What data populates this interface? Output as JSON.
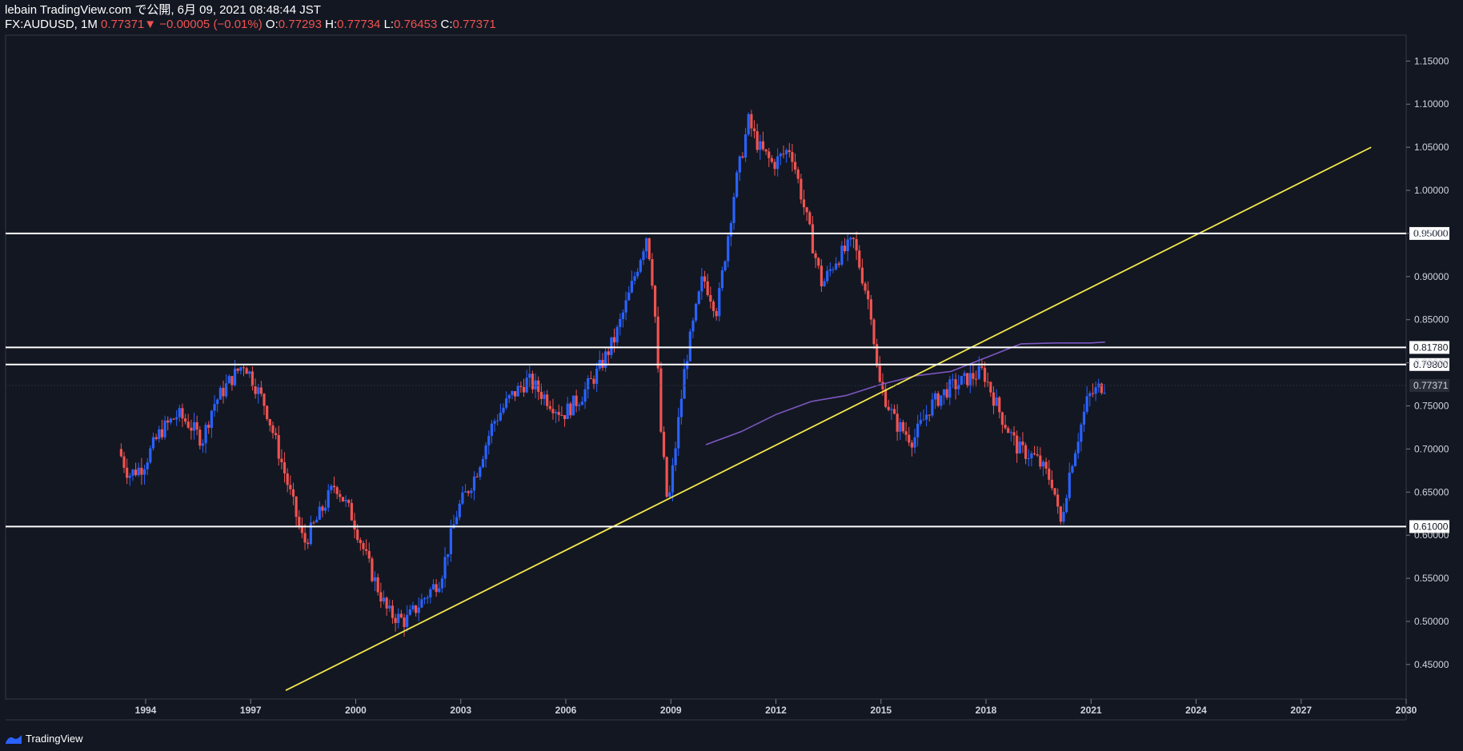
{
  "header": {
    "publisher_line": "lebain TradingView.com で公開, 6月 09, 2021 08:48:44 JST",
    "symbol": "FX:AUDUSD, 1M",
    "last": "0.77371",
    "change_arrow": "▼",
    "change": "−0.00005 (−0.01%)",
    "o_label": "O:",
    "o_value": "0.77293",
    "h_label": "H:",
    "h_value": "0.77734",
    "l_label": "L:",
    "l_value": "0.76453",
    "c_label": "C:",
    "c_value": "0.77371"
  },
  "brand": {
    "name": "TradingView",
    "icon": "tradingview-logo-icon"
  },
  "colors": {
    "background": "#131722",
    "up": "#2962ff",
    "down": "#ef5350",
    "line": "#ffffff",
    "trend": "#f3e84c",
    "ma": "#7e57c2"
  },
  "chart_data": {
    "type": "candlestick",
    "y_axis": {
      "range": [
        0.41,
        1.18
      ],
      "ticks": [
        "1.15000",
        "1.10000",
        "1.05000",
        "1.00000",
        "0.95000",
        "0.90000",
        "0.85000",
        "0.80000",
        "0.75000",
        "0.70000",
        "0.65000",
        "0.60000",
        "0.55000",
        "0.50000",
        "0.45000"
      ]
    },
    "x_axis": {
      "range": [
        1990.0,
        2030.0
      ],
      "ticks": [
        "1994",
        "1997",
        "2000",
        "2003",
        "2006",
        "2009",
        "2012",
        "2015",
        "2018",
        "2021",
        "2024",
        "2027",
        "2030"
      ]
    },
    "horizontal_lines": [
      {
        "price": 0.95,
        "label": "0.95000"
      },
      {
        "price": 0.8178,
        "label": "0.81780"
      },
      {
        "price": 0.798,
        "label": "0.79800"
      },
      {
        "price": 0.61,
        "label": "0.61000"
      }
    ],
    "current_price": {
      "price": 0.77371,
      "label": "0.77371"
    },
    "trendline": {
      "x": [
        1998.0,
        2029.0
      ],
      "y": [
        0.42,
        1.05
      ]
    },
    "moving_average": {
      "x": [
        2010.0,
        2011.0,
        2012.0,
        2013.0,
        2014.0,
        2015.0,
        2016.0,
        2017.0,
        2018.0,
        2019.0,
        2020.0,
        2021.0,
        2021.4
      ],
      "y": [
        0.705,
        0.72,
        0.74,
        0.755,
        0.762,
        0.775,
        0.785,
        0.79,
        0.806,
        0.822,
        0.823,
        0.823,
        0.824
      ]
    },
    "price_path": {
      "x": [
        1993.3,
        1993.6,
        1994.0,
        1994.5,
        1995.0,
        1995.3,
        1995.7,
        1996.0,
        1996.5,
        1996.9,
        1997.5,
        1998.0,
        1998.6,
        1999.0,
        1999.5,
        2000.0,
        2000.5,
        2001.0,
        2001.5,
        2001.9,
        2002.5,
        2003.0,
        2003.5,
        2004.0,
        2004.5,
        2005.0,
        2005.5,
        2006.0,
        2006.5,
        2007.0,
        2007.5,
        2007.9,
        2008.4,
        2008.6,
        2008.8,
        2009.0,
        2009.5,
        2010.0,
        2010.4,
        2010.9,
        2011.3,
        2011.6,
        2012.0,
        2012.5,
        2013.0,
        2013.4,
        2013.8,
        2014.3,
        2014.8,
        2015.0,
        2015.5,
        2016.0,
        2016.5,
        2017.0,
        2017.5,
        2018.0,
        2018.5,
        2019.0,
        2019.5,
        2020.0,
        2020.2,
        2020.5,
        2021.0,
        2021.4
      ],
      "y": [
        0.7,
        0.67,
        0.68,
        0.72,
        0.74,
        0.73,
        0.71,
        0.75,
        0.78,
        0.8,
        0.75,
        0.68,
        0.59,
        0.62,
        0.66,
        0.62,
        0.56,
        0.51,
        0.5,
        0.52,
        0.55,
        0.63,
        0.67,
        0.73,
        0.76,
        0.78,
        0.76,
        0.74,
        0.76,
        0.79,
        0.83,
        0.88,
        0.95,
        0.88,
        0.72,
        0.63,
        0.8,
        0.9,
        0.86,
        1.0,
        1.08,
        1.05,
        1.03,
        1.05,
        0.96,
        0.89,
        0.92,
        0.94,
        0.86,
        0.78,
        0.73,
        0.71,
        0.75,
        0.77,
        0.78,
        0.79,
        0.74,
        0.7,
        0.69,
        0.66,
        0.61,
        0.68,
        0.76,
        0.774
      ]
    },
    "legend": "none",
    "grid": false
  }
}
